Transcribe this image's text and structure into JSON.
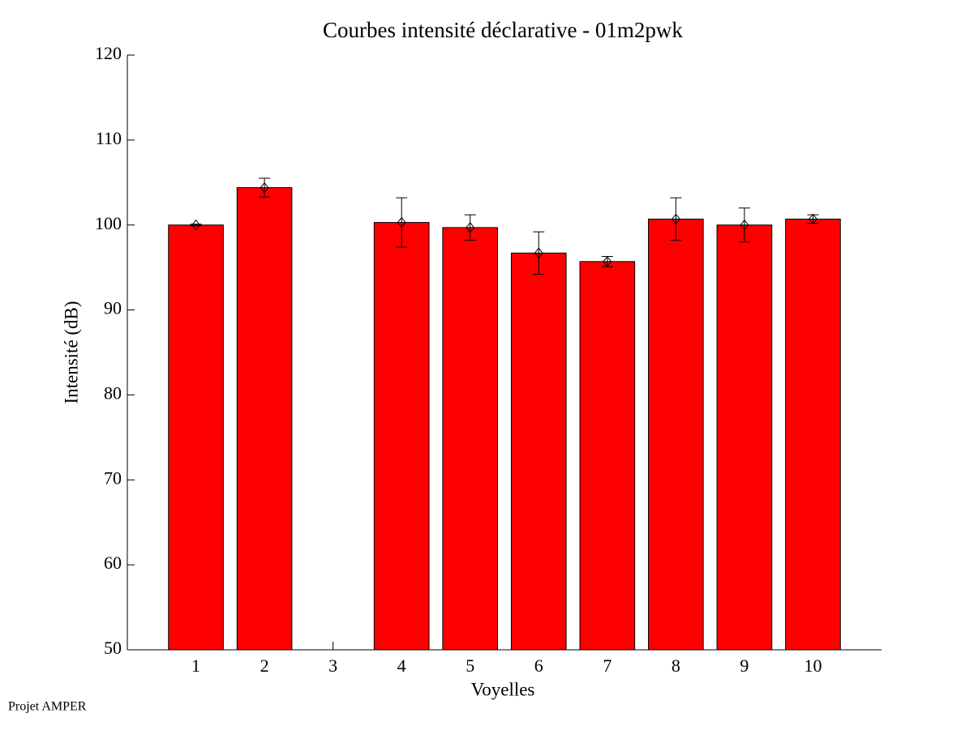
{
  "chart_data": {
    "type": "bar",
    "title": "Courbes intensité déclarative - 01m2pwk",
    "xlabel": "Voyelles",
    "ylabel": "Intensité (dB)",
    "footer": "Projet AMPER",
    "categories": [
      "1",
      "2",
      "3",
      "4",
      "5",
      "6",
      "7",
      "8",
      "9",
      "10"
    ],
    "values": [
      100.0,
      104.4,
      null,
      100.3,
      99.7,
      96.7,
      95.7,
      100.7,
      100.0,
      100.7
    ],
    "errors": [
      0.1,
      1.1,
      null,
      2.9,
      1.5,
      2.5,
      0.6,
      2.5,
      2.0,
      0.5
    ],
    "color": "#ff0000",
    "ylim": [
      50,
      120
    ],
    "yticks": [
      50,
      60,
      70,
      80,
      90,
      100,
      110,
      120
    ]
  }
}
